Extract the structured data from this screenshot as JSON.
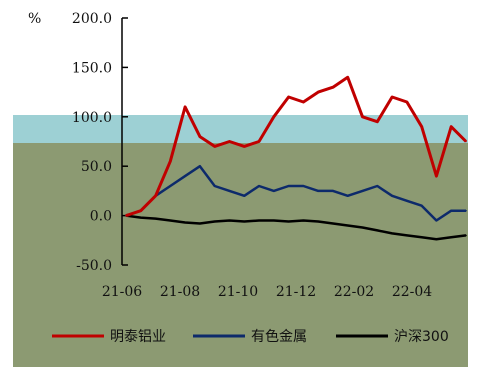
{
  "chart_data": {
    "type": "line",
    "title": "",
    "xlabel": "",
    "ylabel": "",
    "y_unit_label": "%",
    "ylim": [
      -50,
      200
    ],
    "yticks": [
      {
        "value": 200,
        "label": "200.0"
      },
      {
        "value": 150,
        "label": "150.0"
      },
      {
        "value": 100,
        "label": "100.0"
      },
      {
        "value": 50,
        "label": "50.0"
      },
      {
        "value": 0,
        "label": "0.0"
      },
      {
        "value": -50,
        "label": "-50.0"
      }
    ],
    "xticks": [
      "21-06",
      "21-08",
      "21-10",
      "21-12",
      "22-02",
      "22-04"
    ],
    "grid": false,
    "legend_placement": "bottom",
    "colors": {
      "background_fill": "#8c9a72",
      "overlay_band": "#9dd0d4",
      "axis": "#000000"
    },
    "x": [
      "21-06",
      "21-06",
      "21-07",
      "21-07",
      "21-08",
      "21-08",
      "21-09",
      "21-09",
      "21-10",
      "21-10",
      "21-11",
      "21-11",
      "21-12",
      "21-12",
      "22-01",
      "22-01",
      "22-02",
      "22-02",
      "22-03",
      "22-03",
      "22-04",
      "22-04",
      "22-05",
      "22-05"
    ],
    "series": [
      {
        "name": "明泰铝业",
        "color": "#c00000",
        "values": [
          0,
          5,
          20,
          55,
          110,
          80,
          70,
          75,
          70,
          75,
          100,
          120,
          115,
          125,
          130,
          140,
          100,
          95,
          120,
          115,
          90,
          40,
          90,
          75
        ]
      },
      {
        "name": "有色金属",
        "color": "#0d2a6b",
        "values": [
          0,
          5,
          20,
          30,
          40,
          50,
          30,
          25,
          20,
          30,
          25,
          30,
          30,
          25,
          25,
          20,
          25,
          30,
          20,
          15,
          10,
          -5,
          5,
          5
        ]
      },
      {
        "name": "沪深300",
        "color": "#000000",
        "values": [
          0,
          -2,
          -3,
          -5,
          -7,
          -8,
          -6,
          -5,
          -6,
          -5,
          -5,
          -6,
          -5,
          -6,
          -8,
          -10,
          -12,
          -15,
          -18,
          -20,
          -22,
          -24,
          -22,
          -20
        ]
      }
    ]
  }
}
